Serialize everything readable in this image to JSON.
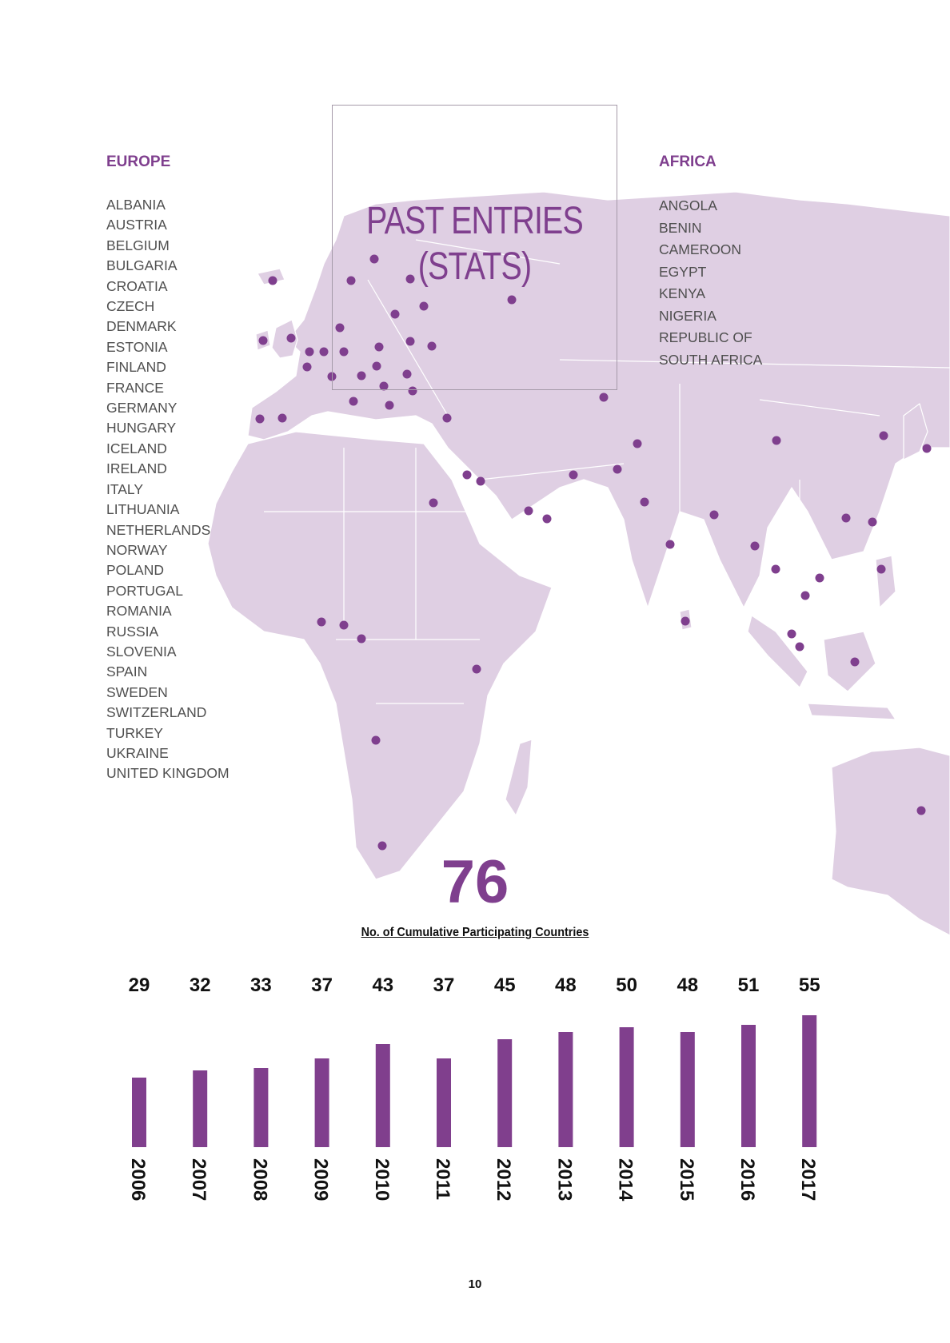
{
  "title": {
    "line1": "PAST ENTRIES",
    "line2": "(STATS)"
  },
  "europe": {
    "heading": "EUROPE",
    "countries": [
      "ALBANIA",
      "AUSTRIA",
      "BELGIUM",
      "BULGARIA",
      "CROATIA",
      "CZECH",
      "DENMARK",
      "ESTONIA",
      "FINLAND",
      "FRANCE",
      "GERMANY",
      "HUNGARY",
      "ICELAND",
      "IRELAND",
      "ITALY",
      "LITHUANIA",
      "NETHERLANDS",
      "NORWAY",
      "POLAND",
      "PORTUGAL",
      "ROMANIA",
      "RUSSIA",
      "SLOVENIA",
      "SPAIN",
      "SWEDEN",
      "SWITZERLAND",
      "TURKEY",
      "UKRAINE",
      "UNITED KINGDOM"
    ]
  },
  "africa": {
    "heading": "AFRICA",
    "countries": [
      "ANGOLA",
      "BENIN",
      "CAMEROON",
      "EGYPT",
      "KENYA",
      "NIGERIA",
      "REPUBLIC OF",
      "SOUTH AFRICA"
    ]
  },
  "summary": {
    "total": "76"
  },
  "page_number": "10",
  "colors": {
    "accent": "#803f8d",
    "map_fill": "#dfcfe3",
    "map_border": "#ffffff"
  },
  "chart_data": {
    "type": "bar",
    "title": "No. of Cumulative Participating Countries",
    "categories": [
      "2006",
      "2007",
      "2008",
      "2009",
      "2010",
      "2011",
      "2012",
      "2013",
      "2014",
      "2015",
      "2016",
      "2017"
    ],
    "values": [
      29,
      32,
      33,
      37,
      43,
      37,
      45,
      48,
      50,
      48,
      51,
      55
    ],
    "ylim": [
      0,
      55
    ],
    "data_labels": true,
    "grid": false,
    "xlabel": "",
    "ylabel": ""
  }
}
